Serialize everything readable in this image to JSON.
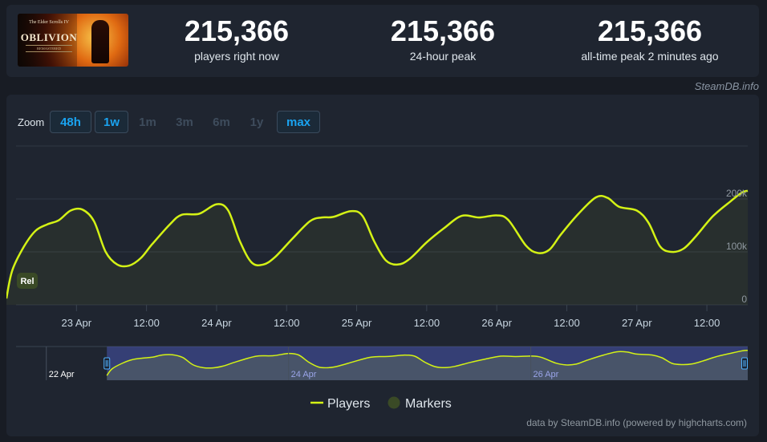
{
  "game": {
    "logo_small_text": "The Elder Scrolls IV",
    "logo_title": "OBLIVION",
    "logo_subtitle": "REMASTERED"
  },
  "stats": [
    {
      "value": "215,366",
      "label": "players right now"
    },
    {
      "value": "215,366",
      "label": "24-hour peak"
    },
    {
      "value": "215,366",
      "label": "all-time peak 2 minutes ago"
    }
  ],
  "credit_top": "SteamDB.info",
  "zoom": {
    "label": "Zoom",
    "buttons": [
      {
        "label": "48h",
        "state": "active"
      },
      {
        "label": "1w",
        "state": "active"
      },
      {
        "label": "1m",
        "state": "inactive"
      },
      {
        "label": "3m",
        "state": "inactive"
      },
      {
        "label": "6m",
        "state": "inactive"
      },
      {
        "label": "1y",
        "state": "inactive"
      },
      {
        "label": "max",
        "state": "active"
      }
    ]
  },
  "chart_data": {
    "type": "line",
    "x_domain": [
      "2025-04-22 12:00",
      "2025-04-27 19:00"
    ],
    "y_axis": {
      "min": 0,
      "max": 200000,
      "ticks": [
        {
          "value": 0,
          "label": "0"
        },
        {
          "value": 100000,
          "label": "100k"
        },
        {
          "value": 200000,
          "label": "200k"
        }
      ]
    },
    "x_ticks": [
      {
        "x": "2025-04-23 00:00",
        "label": "23 Apr"
      },
      {
        "x": "2025-04-23 12:00",
        "label": "12:00"
      },
      {
        "x": "2025-04-24 00:00",
        "label": "24 Apr"
      },
      {
        "x": "2025-04-24 12:00",
        "label": "12:00"
      },
      {
        "x": "2025-04-25 00:00",
        "label": "25 Apr"
      },
      {
        "x": "2025-04-25 12:00",
        "label": "12:00"
      },
      {
        "x": "2025-04-26 00:00",
        "label": "26 Apr"
      },
      {
        "x": "2025-04-26 12:00",
        "label": "12:00"
      },
      {
        "x": "2025-04-27 00:00",
        "label": "27 Apr"
      },
      {
        "x": "2025-04-27 12:00",
        "label": "12:00"
      }
    ],
    "series": [
      {
        "name": "Players",
        "color": "#d4f215",
        "points": [
          [
            "2025-04-22 12:00",
            12000
          ],
          [
            "2025-04-22 13:00",
            65000
          ],
          [
            "2025-04-22 15:00",
            110000
          ],
          [
            "2025-04-22 17:00",
            140000
          ],
          [
            "2025-04-22 19:00",
            152000
          ],
          [
            "2025-04-22 21:00",
            160000
          ],
          [
            "2025-04-22 23:00",
            178000
          ],
          [
            "2025-04-23 01:00",
            180000
          ],
          [
            "2025-04-23 03:00",
            158000
          ],
          [
            "2025-04-23 05:00",
            100000
          ],
          [
            "2025-04-23 07:00",
            76000
          ],
          [
            "2025-04-23 09:00",
            74000
          ],
          [
            "2025-04-23 11:00",
            88000
          ],
          [
            "2025-04-23 13:00",
            115000
          ],
          [
            "2025-04-23 16:00",
            152000
          ],
          [
            "2025-04-23 18:00",
            170000
          ],
          [
            "2025-04-23 21:00",
            172000
          ],
          [
            "2025-04-24 00:00",
            190000
          ],
          [
            "2025-04-24 02:00",
            178000
          ],
          [
            "2025-04-24 04:00",
            120000
          ],
          [
            "2025-04-24 06:00",
            80000
          ],
          [
            "2025-04-24 08:00",
            76000
          ],
          [
            "2025-04-24 10:00",
            90000
          ],
          [
            "2025-04-24 13:00",
            125000
          ],
          [
            "2025-04-24 16:00",
            158000
          ],
          [
            "2025-04-24 18:00",
            165000
          ],
          [
            "2025-04-24 20:00",
            166000
          ],
          [
            "2025-04-24 23:00",
            177000
          ],
          [
            "2025-04-25 01:00",
            168000
          ],
          [
            "2025-04-25 03:00",
            120000
          ],
          [
            "2025-04-25 05:00",
            84000
          ],
          [
            "2025-04-25 07:00",
            76000
          ],
          [
            "2025-04-25 09:00",
            86000
          ],
          [
            "2025-04-25 12:00",
            118000
          ],
          [
            "2025-04-25 15:00",
            145000
          ],
          [
            "2025-04-25 18:00",
            168000
          ],
          [
            "2025-04-25 21:00",
            165000
          ],
          [
            "2025-04-26 00:00",
            169000
          ],
          [
            "2025-04-26 02:00",
            160000
          ],
          [
            "2025-04-26 05:00",
            112000
          ],
          [
            "2025-04-26 07:00",
            98000
          ],
          [
            "2025-04-26 09:00",
            104000
          ],
          [
            "2025-04-26 11:00",
            133000
          ],
          [
            "2025-04-26 14:00",
            172000
          ],
          [
            "2025-04-26 17:00",
            203000
          ],
          [
            "2025-04-26 19:00",
            202000
          ],
          [
            "2025-04-26 21:00",
            185000
          ],
          [
            "2025-04-27 00:00",
            178000
          ],
          [
            "2025-04-27 02:00",
            155000
          ],
          [
            "2025-04-27 04:00",
            110000
          ],
          [
            "2025-04-27 06:00",
            100000
          ],
          [
            "2025-04-27 08:00",
            106000
          ],
          [
            "2025-04-27 10:00",
            128000
          ],
          [
            "2025-04-27 13:00",
            167000
          ],
          [
            "2025-04-27 16:00",
            195000
          ],
          [
            "2025-04-27 18:00",
            212000
          ],
          [
            "2025-04-27 19:00",
            215366
          ]
        ]
      },
      {
        "name": "Markers",
        "color": "#3a4a26"
      }
    ],
    "markers": [
      {
        "x": "2025-04-22 12:00",
        "label": "Rel"
      }
    ],
    "navigator": {
      "x_domain": [
        "2025-04-21 18:00",
        "2025-04-27 19:00"
      ],
      "selected": [
        "2025-04-22 12:00",
        "2025-04-27 19:00"
      ],
      "ticks": [
        {
          "x": "2025-04-22 00:00",
          "label": "22 Apr"
        },
        {
          "x": "2025-04-24 00:00",
          "label": "24 Apr"
        },
        {
          "x": "2025-04-26 00:00",
          "label": "26 Apr"
        }
      ]
    },
    "legend": {
      "position": "bottom",
      "items": [
        "Players",
        "Markers"
      ]
    }
  },
  "credit_bottom": "data by SteamDB.info (powered by highcharts.com)"
}
